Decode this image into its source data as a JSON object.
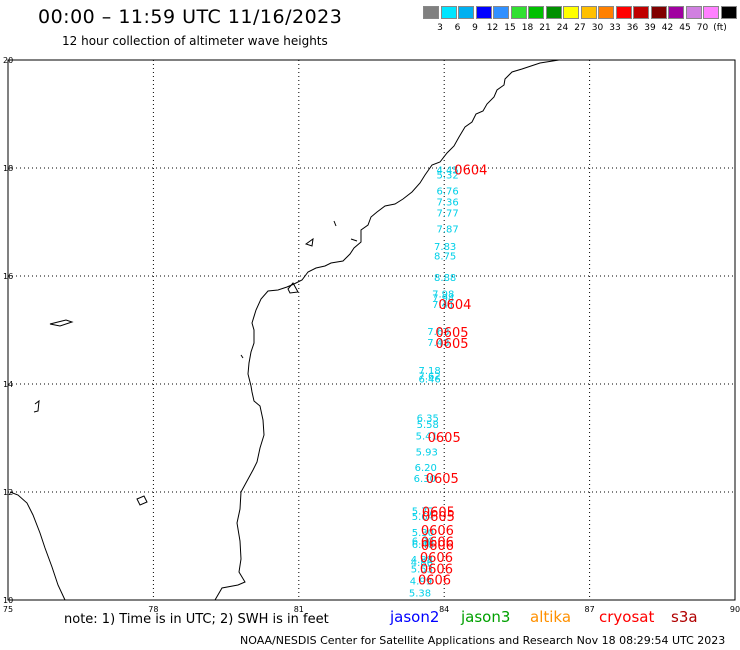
{
  "title": "00:00 – 11:59 UTC 11/16/2023",
  "subtitle": "12 hour collection of altimeter wave heights",
  "scale": {
    "colors": [
      "#808080",
      "#00e5ff",
      "#00b0f0",
      "#0000ff",
      "#3090ff",
      "#30e030",
      "#00c000",
      "#009000",
      "#ffff00",
      "#ffc000",
      "#ff8000",
      "#ff0000",
      "#c00000",
      "#800000",
      "#a000a0",
      "#d080e0",
      "#ff80ff",
      "#000000"
    ],
    "labels": [
      "3",
      "6",
      "9",
      "12",
      "15",
      "18",
      "21",
      "24",
      "27",
      "30",
      "33",
      "36",
      "39",
      "42",
      "45",
      "70",
      "(ft)"
    ]
  },
  "map": {
    "lat_labels": [
      "20",
      "18",
      "16",
      "14",
      "12",
      "10"
    ],
    "lon_labels": [
      "75",
      "78",
      "81",
      "84",
      "87",
      "90"
    ]
  },
  "obs": {
    "colors": {
      "wave_height": "#00d0e8",
      "time_label": "#ff0000"
    },
    "swh": [
      {
        "label": "4.45",
        "lat": 17.97,
        "lon": 84.07
      },
      {
        "label": "5.32",
        "lat": 17.88,
        "lon": 84.07
      },
      {
        "label": "6.76",
        "lat": 17.58,
        "lon": 84.07
      },
      {
        "label": "7.36",
        "lat": 17.38,
        "lon": 84.07
      },
      {
        "label": "7.77",
        "lat": 17.18,
        "lon": 84.07
      },
      {
        "label": "7.87",
        "lat": 16.88,
        "lon": 84.07
      },
      {
        "label": "7.83",
        "lat": 16.56,
        "lon": 84.02
      },
      {
        "label": "8.75",
        "lat": 16.38,
        "lon": 84.02
      },
      {
        "label": "8.88",
        "lat": 15.98,
        "lon": 84.02
      },
      {
        "label": "7.98",
        "lat": 15.68,
        "lon": 83.98
      },
      {
        "label": "7.94",
        "lat": 15.6,
        "lon": 83.98
      },
      {
        "label": "7.41",
        "lat": 15.48,
        "lon": 83.98
      },
      {
        "label": "7.63",
        "lat": 14.98,
        "lon": 83.88
      },
      {
        "label": "7.43",
        "lat": 14.78,
        "lon": 83.88
      },
      {
        "label": "7.18",
        "lat": 14.26,
        "lon": 83.7
      },
      {
        "label": "7.62",
        "lat": 14.16,
        "lon": 83.7
      },
      {
        "label": "6.46",
        "lat": 14.1,
        "lon": 83.7
      },
      {
        "label": "6.35",
        "lat": 13.38,
        "lon": 83.66
      },
      {
        "label": "5.58",
        "lat": 13.26,
        "lon": 83.66
      },
      {
        "label": "5.41",
        "lat": 13.05,
        "lon": 83.64
      },
      {
        "label": "5.93",
        "lat": 12.75,
        "lon": 83.64
      },
      {
        "label": "6.20",
        "lat": 12.46,
        "lon": 83.62
      },
      {
        "label": "6.30",
        "lat": 12.26,
        "lon": 83.6
      },
      {
        "label": "5.77",
        "lat": 11.66,
        "lon": 83.56
      },
      {
        "label": "5.64",
        "lat": 11.56,
        "lon": 83.56
      },
      {
        "label": "5.30",
        "lat": 11.26,
        "lon": 83.56
      },
      {
        "label": "6.00",
        "lat": 11.1,
        "lon": 83.56
      },
      {
        "label": "6.46",
        "lat": 11.04,
        "lon": 83.56
      },
      {
        "label": "4.88",
        "lat": 10.76,
        "lon": 83.54
      },
      {
        "label": "4.86",
        "lat": 10.7,
        "lon": 83.54
      },
      {
        "label": "5.53",
        "lat": 10.58,
        "lon": 83.54
      },
      {
        "label": "4.99",
        "lat": 10.36,
        "lon": 83.52
      },
      {
        "label": "5.38",
        "lat": 10.14,
        "lon": 83.5
      }
    ],
    "times": [
      {
        "label": "0604",
        "lat": 17.97,
        "lon": 84.55
      },
      {
        "label": "0604",
        "lat": 15.48,
        "lon": 84.22
      },
      {
        "label": "0605",
        "lat": 14.96,
        "lon": 84.16
      },
      {
        "label": "0605",
        "lat": 14.76,
        "lon": 84.16
      },
      {
        "label": "0605",
        "lat": 13.02,
        "lon": 84.0
      },
      {
        "label": "0605",
        "lat": 12.26,
        "lon": 83.96
      },
      {
        "label": "0605",
        "lat": 11.64,
        "lon": 83.88
      },
      {
        "label": "0605",
        "lat": 11.56,
        "lon": 83.88
      },
      {
        "label": "0606",
        "lat": 11.3,
        "lon": 83.86
      },
      {
        "label": "0606",
        "lat": 11.08,
        "lon": 83.86
      },
      {
        "label": "0606",
        "lat": 11.02,
        "lon": 83.86
      },
      {
        "label": "0606",
        "lat": 10.8,
        "lon": 83.84
      },
      {
        "label": "0606",
        "lat": 10.58,
        "lon": 83.84
      },
      {
        "label": "0606",
        "lat": 10.38,
        "lon": 83.8
      }
    ]
  },
  "note": "note: 1) Time is in UTC; 2) SWH is in feet",
  "legend": [
    {
      "name": "jason2",
      "color": "#0000ff"
    },
    {
      "name": "jason3",
      "color": "#00a000"
    },
    {
      "name": "altika",
      "color": "#ff9000"
    },
    {
      "name": "cryosat",
      "color": "#ff0000"
    },
    {
      "name": "s3a",
      "color": "#b00000"
    }
  ],
  "footer": "NOAA/NESDIS Center for Satellite Applications and Research    Nov 18 08:29:54 UTC 2023"
}
